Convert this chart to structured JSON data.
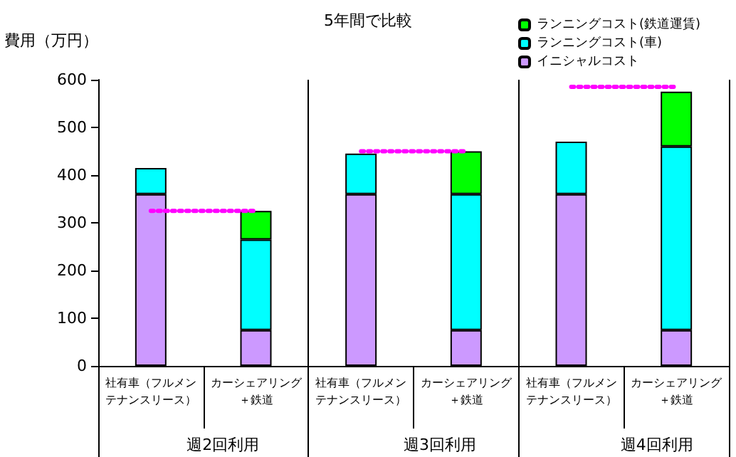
{
  "chart_data": {
    "type": "bar",
    "title": "5年間で比較",
    "ylabel": "費用（万円）",
    "categories": [
      "社有車（フルメンテナンスリース）",
      "カーシェアリング＋鉄道",
      "社有車（フルメンテナンスリース）",
      "カーシェアリング＋鉄道",
      "社有車（フルメンテナンスリース）",
      "カーシェアリング＋鉄道"
    ],
    "series": [
      {
        "name": "イニシャルコスト",
        "color": "#cc99ff",
        "values": [
          360,
          75,
          360,
          75,
          360,
          75
        ]
      },
      {
        "name": "ランニングコスト(車)",
        "color": "#00ffff",
        "values": [
          55,
          190,
          85,
          285,
          110,
          385
        ]
      },
      {
        "name": "ランニングコスト(鉄道運賃)",
        "color": "#00ff00",
        "values": [
          null,
          60,
          null,
          90,
          null,
          115
        ]
      },
      {
        "type": "line",
        "color": "#ff00ff",
        "line_style": "dotted",
        "marker": "none",
        "values": [
          325,
          325,
          null,
          null,
          null,
          null
        ]
      },
      {
        "type": "line",
        "color": "#ff00ff",
        "line_style": "dotted",
        "marker": "none",
        "values": [
          null,
          null,
          450,
          450,
          null,
          null
        ]
      },
      {
        "type": "line",
        "color": "#ff00ff",
        "line_style": "dotted",
        "marker": "none",
        "values": [
          null,
          null,
          null,
          null,
          585,
          585
        ]
      }
    ],
    "stacked": true,
    "ylim": [
      0,
      600
    ],
    "yticks": [
      0,
      100,
      200,
      300,
      400,
      500,
      600
    ],
    "grid": false,
    "legend": "top right",
    "annotations": [
      "週2回利用",
      "週3回利用",
      "週4回利用"
    ]
  }
}
